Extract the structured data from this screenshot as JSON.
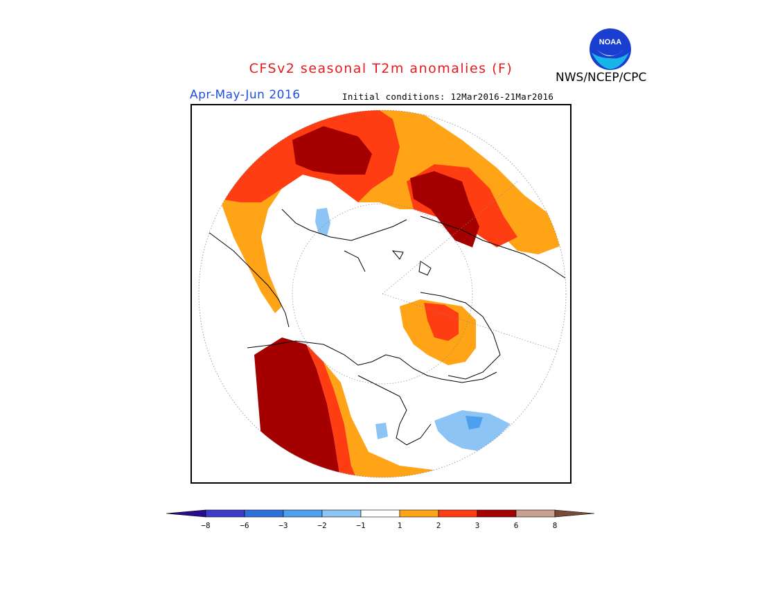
{
  "header": {
    "title": "CFSv2 seasonal T2m anomalies (F)",
    "season": "Apr-May-Jun 2016",
    "initial_conditions": "Initial conditions: 12Mar2016-21Mar2016",
    "agency": "NWS/NCEP/CPC",
    "logo_text": "NOAA",
    "colors": {
      "title": "#e8181b",
      "season": "#1f4ee0"
    }
  },
  "legend": {
    "levels": [
      "−8",
      "−6",
      "−3",
      "−2",
      "−1",
      "1",
      "2",
      "3",
      "6",
      "8"
    ],
    "colors": [
      "#2a0c8f",
      "#3c3cc8",
      "#2d6fdc",
      "#4ea0ef",
      "#8cc4f5",
      "#ffffff",
      "#ffa317",
      "#ff3d12",
      "#a50000",
      "#c9a090",
      "#7a4a38"
    ]
  }
}
